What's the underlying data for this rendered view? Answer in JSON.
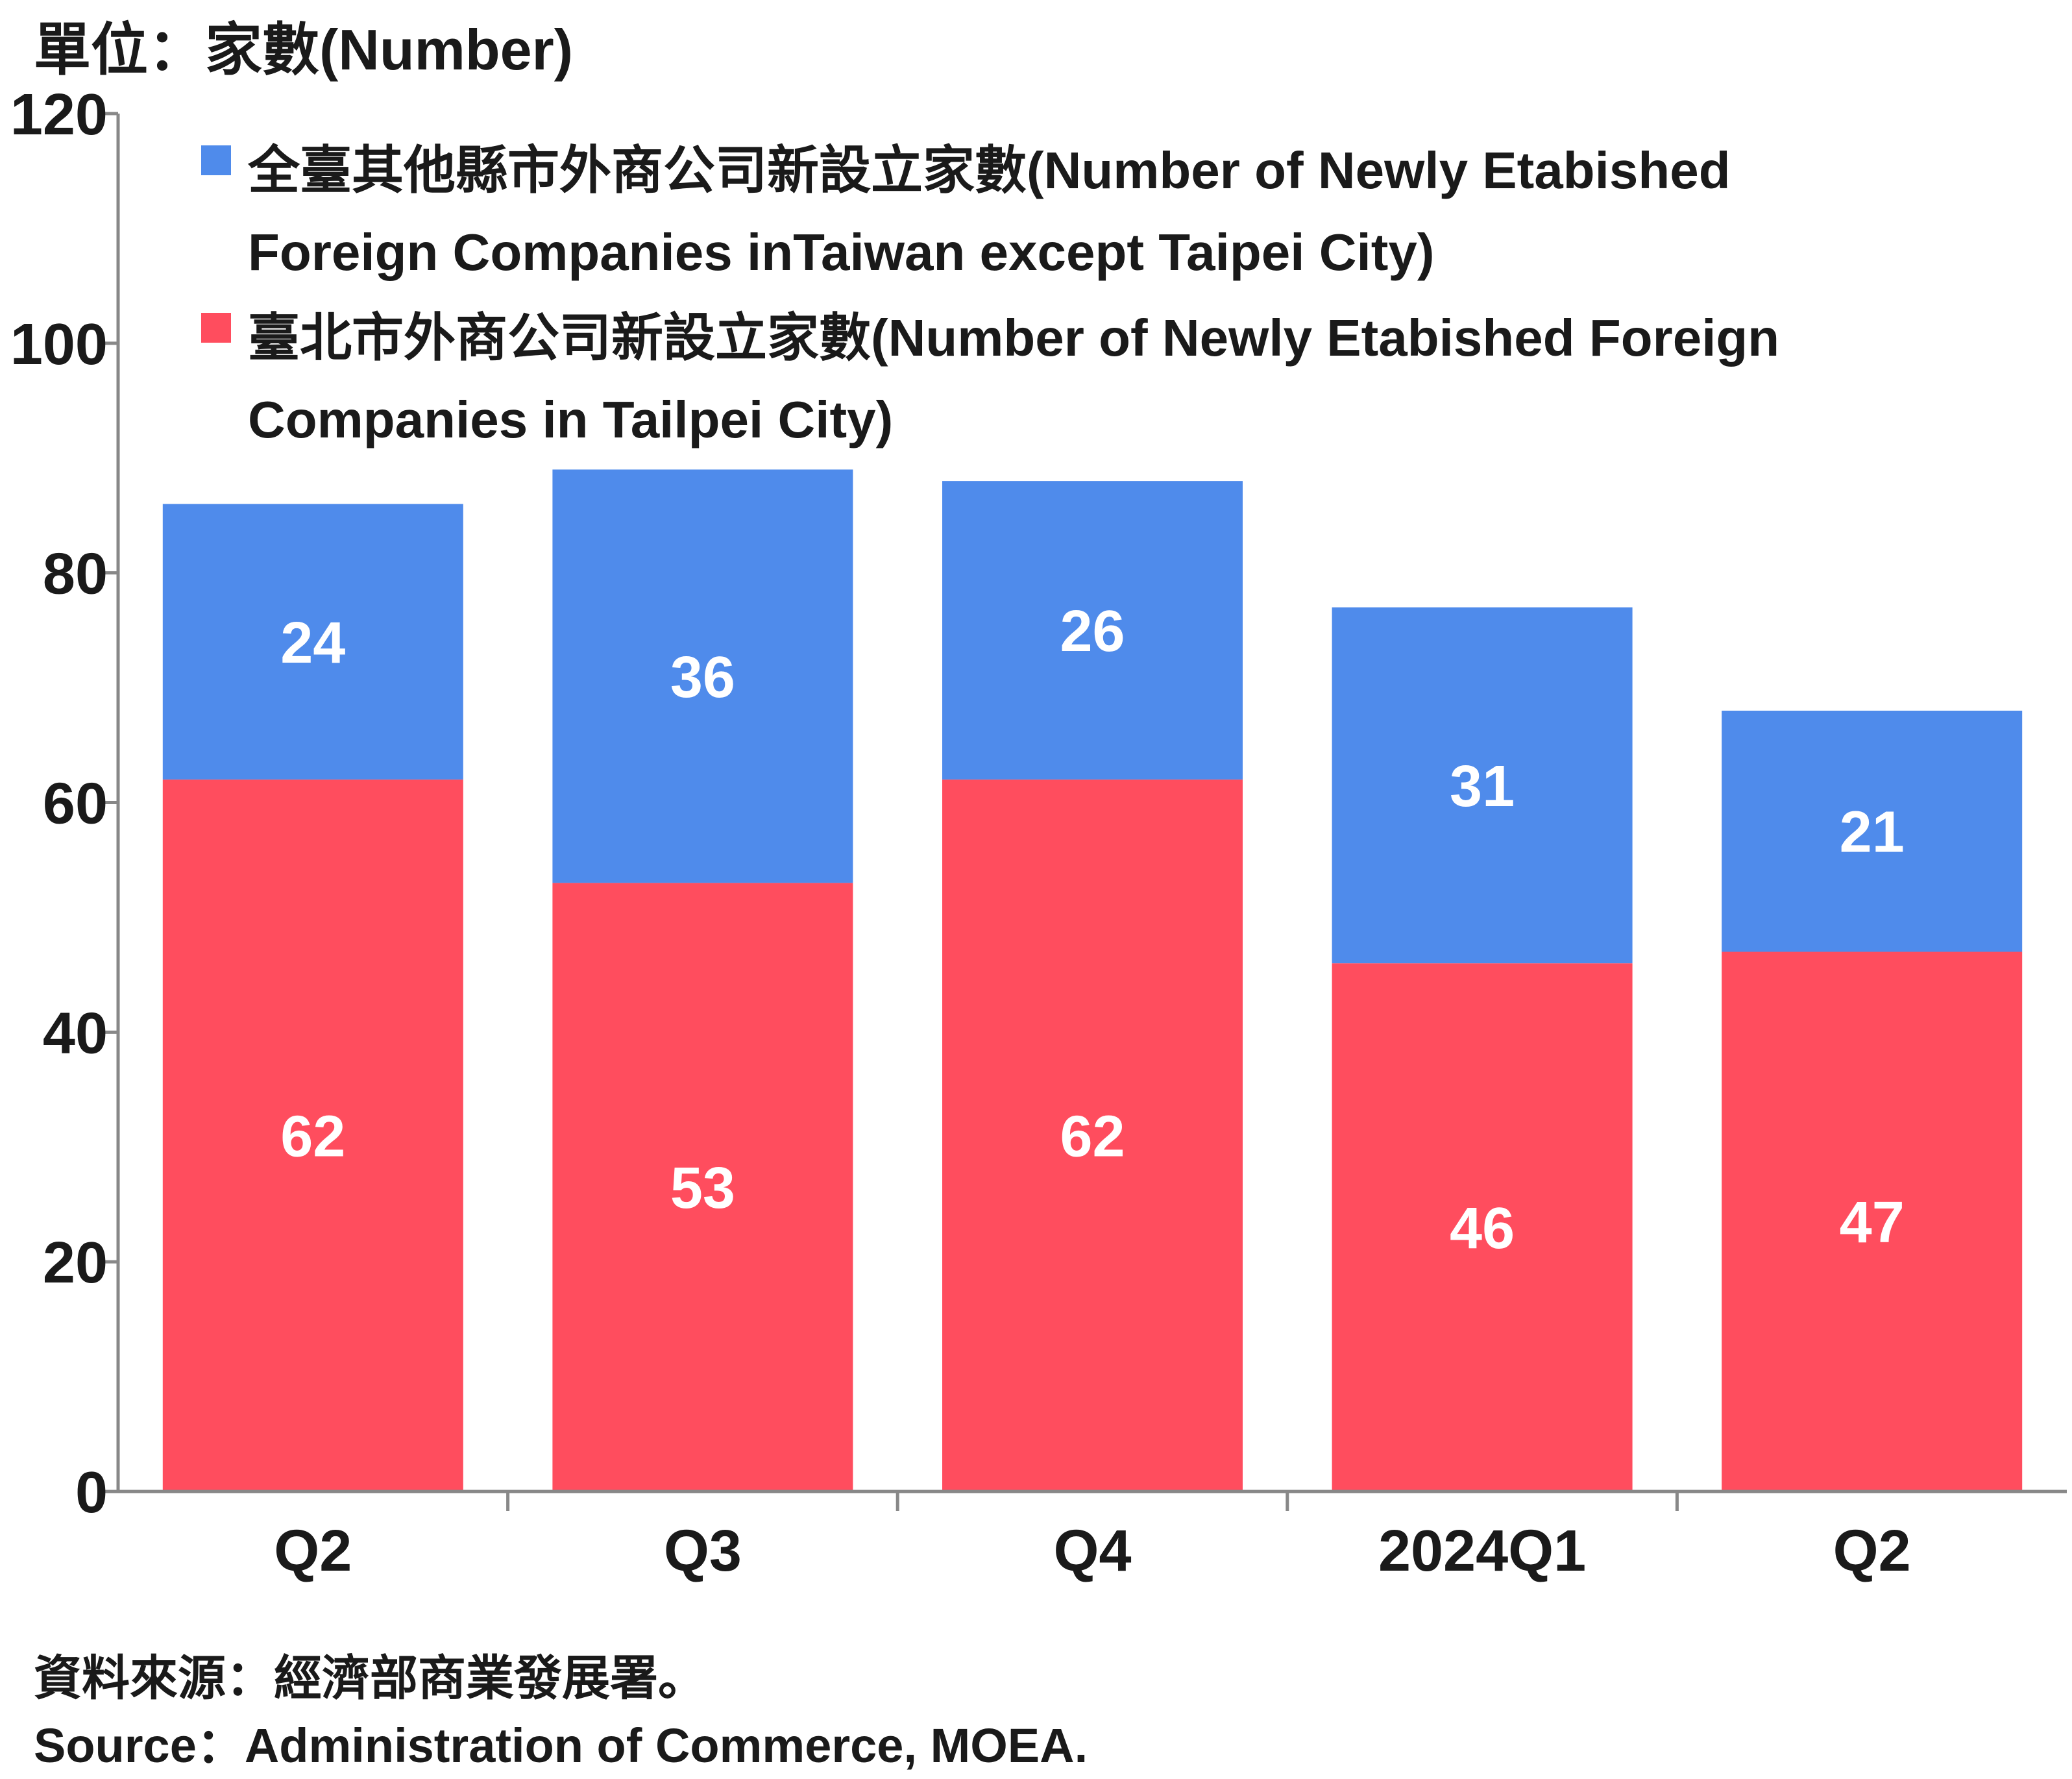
{
  "unit_label": "單位：家數(Number)",
  "legend": [
    {
      "line1": "全臺其他縣市外商公司新設立家數(Number of Newly Etabished",
      "line2": "Foreign Companies inTaiwan except Taipei City)"
    },
    {
      "line1": "臺北市外商公司新設立家數(Number of Newly Etabished Foreign",
      "line2": "Companies in Tailpei City)"
    }
  ],
  "source": {
    "zh": "資料來源：經濟部商業發展署。",
    "en": "Source：Administration of Commerce, MOEA."
  },
  "colors": {
    "taipei": "#FF4D5E",
    "other": "#4F8BEB",
    "axis": "#888888",
    "text": "#1a1a1a",
    "label": "#ffffff"
  },
  "chart_data": {
    "type": "bar",
    "stacked": true,
    "categories": [
      "Q2",
      "Q3",
      "Q4",
      "2024Q1",
      "Q2"
    ],
    "series": [
      {
        "name": "臺北市外商公司新設立家數(Number of Newly Etabished Foreign Companies in Tailpei City)",
        "values": [
          62,
          53,
          62,
          46,
          47
        ]
      },
      {
        "name": "全臺其他縣市外商公司新設立家數(Number of Newly Etabished Foreign Companies inTaiwan except Taipei City)",
        "values": [
          24,
          36,
          26,
          31,
          21
        ]
      }
    ],
    "ylim": [
      0,
      120
    ],
    "yticks": [
      0,
      20,
      40,
      60,
      80,
      100,
      120
    ],
    "ylabel": "單位：家數(Number)",
    "legend_position": "top-left",
    "grid": false
  }
}
